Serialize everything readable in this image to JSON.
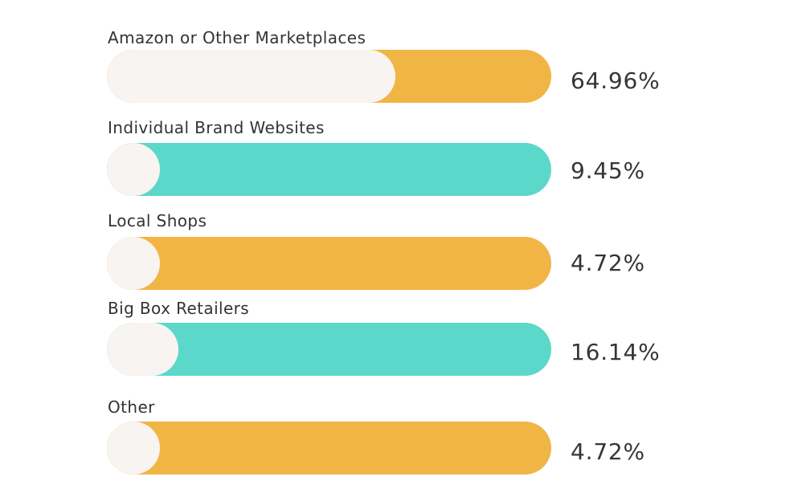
{
  "chart_data": {
    "type": "bar",
    "orientation": "horizontal",
    "categories": [
      "Amazon or Other Marketplaces",
      "Individual Brand Websites",
      "Local Shops",
      "Big Box Retailers",
      "Other"
    ],
    "values": [
      64.96,
      9.45,
      4.72,
      16.14,
      4.72
    ],
    "value_labels": [
      "64.96%",
      "9.45%",
      "4.72%",
      "16.14%",
      "4.72%"
    ],
    "bar_colors": [
      "#f1b545",
      "#5bd8ca",
      "#f1b545",
      "#5bd8ca",
      "#f1b545"
    ],
    "fill_color": "#f8f4f1",
    "xlim": [
      0,
      100
    ],
    "title": "",
    "xlabel": "",
    "ylabel": "",
    "grid": false,
    "legend": "none"
  }
}
